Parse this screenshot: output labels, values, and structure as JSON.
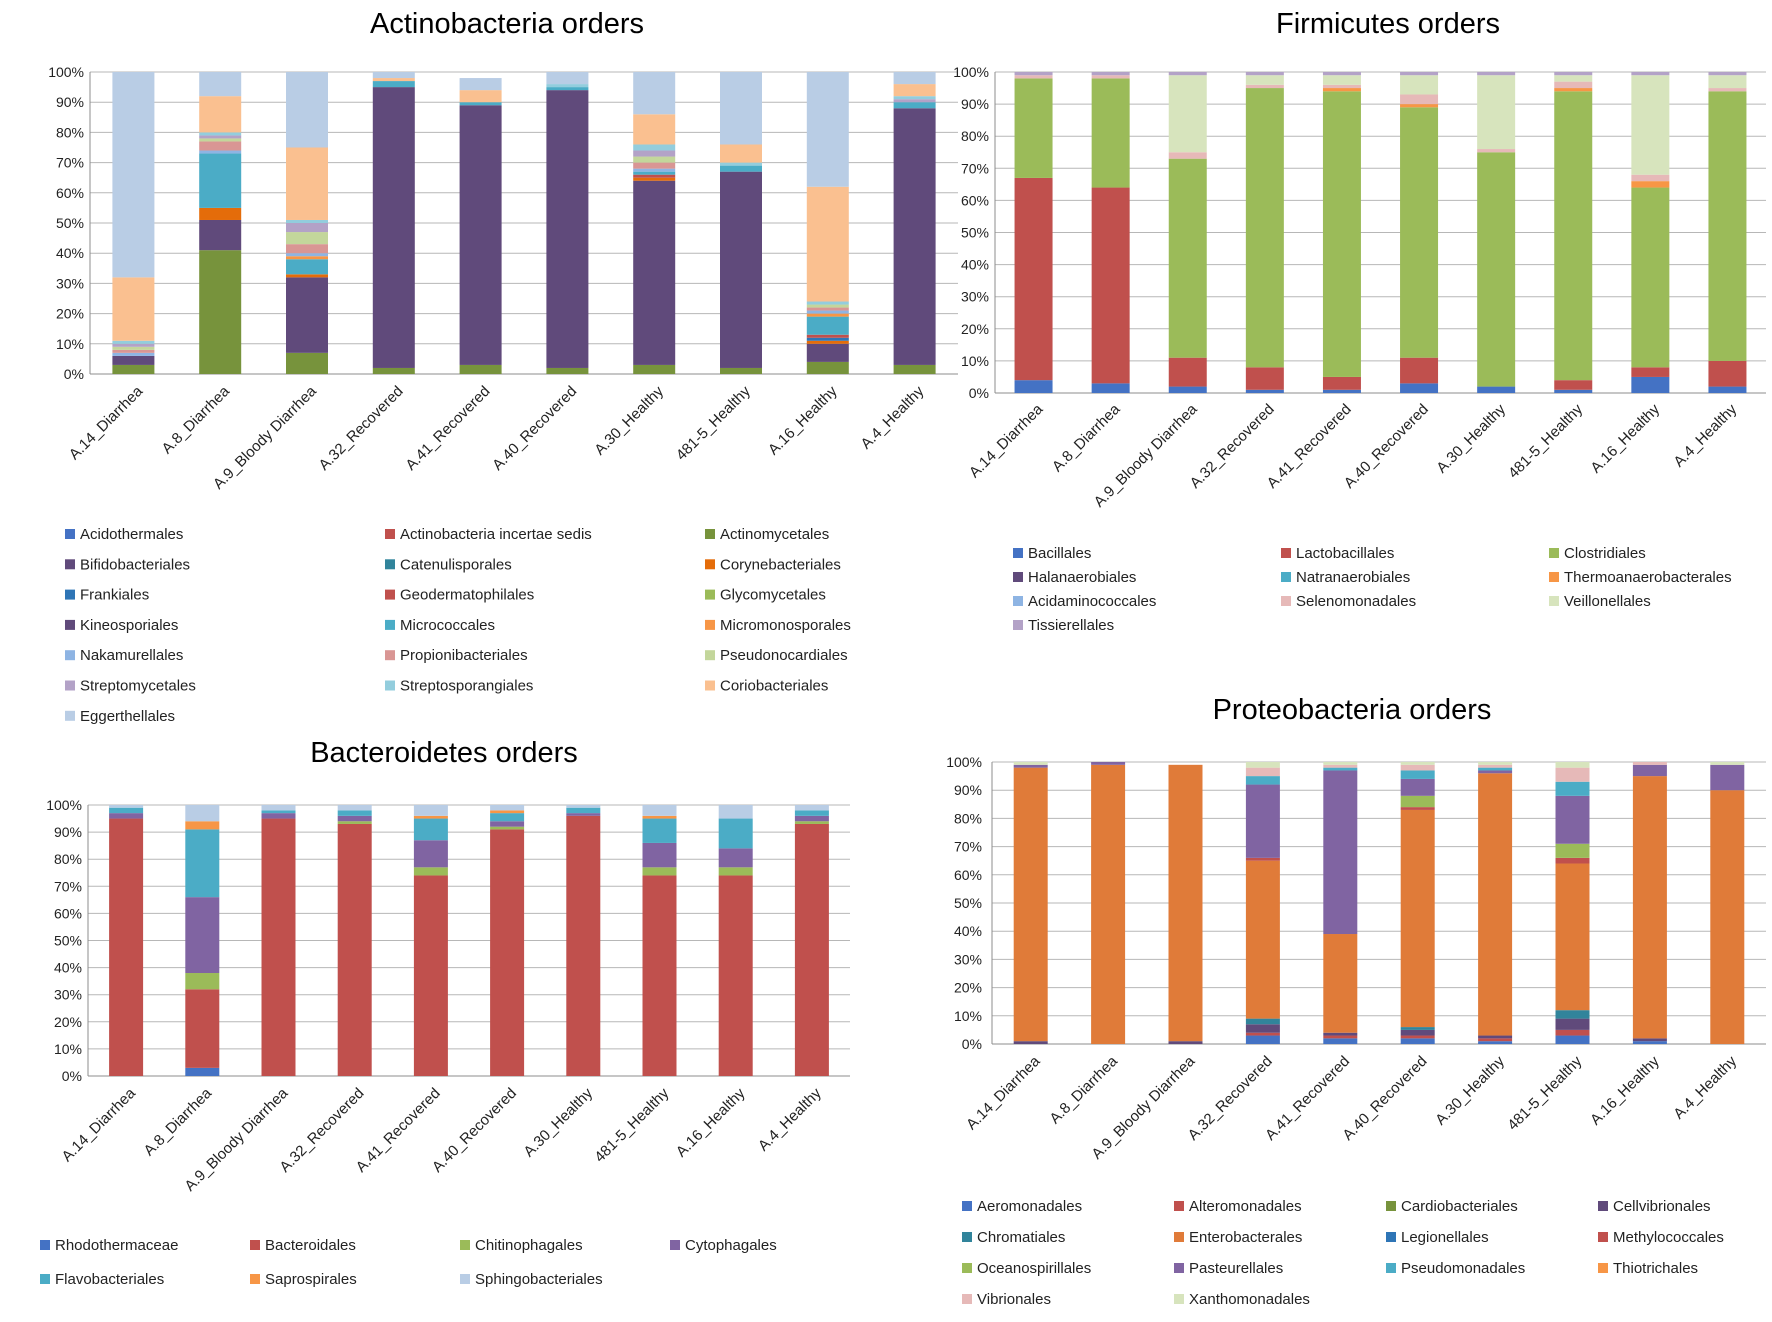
{
  "chart_data": [
    {
      "id": "actino",
      "type": "bar",
      "stacked": true,
      "title": "Actinobacteria orders",
      "categories": [
        "A.14_Diarrhea",
        "A.8_Diarrhea",
        "A.9_Bloody Diarrhea",
        "A.32_Recovered",
        "A.41_Recovered",
        "A.40_Recovered",
        "A.30_Healthy",
        "481-5_Healthy",
        "A.16_Healthy",
        "A.4_Healthy"
      ],
      "ylim": [
        0,
        100
      ],
      "yticks": [
        "0%",
        "10%",
        "20%",
        "30%",
        "40%",
        "50%",
        "60%",
        "70%",
        "80%",
        "90%",
        "100%"
      ],
      "grid": true,
      "legend_position": "bottom",
      "series": [
        {
          "name": "Acidothermales",
          "color": "#4472c4",
          "values": [
            0,
            0,
            0,
            0,
            0,
            0,
            0,
            0,
            0,
            0
          ]
        },
        {
          "name": "Actinobacteria incertae sedis",
          "color": "#c0504d",
          "values": [
            0,
            0,
            0,
            0,
            0,
            0,
            0,
            0,
            0,
            0
          ]
        },
        {
          "name": "Actinomycetales",
          "color": "#77933c",
          "values": [
            3,
            41,
            7,
            2,
            3,
            2,
            3,
            2,
            4,
            3
          ]
        },
        {
          "name": "Bifidobacteriales",
          "color": "#604a7b",
          "values": [
            3,
            10,
            25,
            93,
            86,
            92,
            61,
            65,
            6,
            85
          ]
        },
        {
          "name": "Catenulisporales",
          "color": "#31849b",
          "values": [
            0,
            0,
            0,
            0,
            0,
            0,
            0,
            0,
            0,
            0
          ]
        },
        {
          "name": "Corynebacteriales",
          "color": "#e46c0a",
          "values": [
            0,
            4,
            1,
            0,
            0,
            0,
            1,
            0,
            1,
            0
          ]
        },
        {
          "name": "Frankiales",
          "color": "#2e75b6",
          "values": [
            0,
            0,
            0,
            0,
            0,
            0,
            0,
            0,
            1,
            0
          ]
        },
        {
          "name": "Geodermatophilales",
          "color": "#c0504d",
          "values": [
            0,
            0,
            0,
            0,
            0,
            0,
            1,
            0,
            1,
            0
          ]
        },
        {
          "name": "Glycomycetales",
          "color": "#9bbb59",
          "values": [
            0,
            0,
            0,
            0,
            0,
            0,
            0,
            0,
            0,
            0
          ]
        },
        {
          "name": "Kineosporiales",
          "color": "#604a7b",
          "values": [
            0,
            0,
            0,
            0,
            0,
            0,
            0,
            0,
            0,
            0
          ]
        },
        {
          "name": "Micrococcales",
          "color": "#4bacc6",
          "values": [
            0,
            18,
            5,
            2,
            1,
            1,
            1,
            2,
            6,
            2
          ]
        },
        {
          "name": "Micromonosporales",
          "color": "#f79646",
          "values": [
            0,
            0,
            1,
            0,
            0,
            0,
            0,
            0,
            1,
            0
          ]
        },
        {
          "name": "Nakamurellales",
          "color": "#8eb4e3",
          "values": [
            1,
            1,
            1,
            0,
            0,
            0,
            1,
            0,
            1,
            0
          ]
        },
        {
          "name": "Propionibacteriales",
          "color": "#d99694",
          "values": [
            1,
            3,
            3,
            0,
            0,
            0,
            2,
            0,
            1,
            0
          ]
        },
        {
          "name": "Pseudonocardiales",
          "color": "#c3d69b",
          "values": [
            1,
            1,
            4,
            0,
            0,
            0,
            2,
            0,
            1,
            0
          ]
        },
        {
          "name": "Streptomycetales",
          "color": "#b3a2c7",
          "values": [
            1,
            1,
            3,
            0,
            0,
            0,
            2,
            0,
            0,
            1
          ]
        },
        {
          "name": "Streptosporangiales",
          "color": "#93cddd",
          "values": [
            1,
            1,
            1,
            0,
            0,
            1,
            2,
            1,
            1,
            1
          ]
        },
        {
          "name": "Coriobacteriales",
          "color": "#fac090",
          "values": [
            21,
            12,
            24,
            1,
            4,
            0,
            10,
            6,
            38,
            4
          ]
        },
        {
          "name": "Eggerthellales",
          "color": "#b9cde5",
          "values": [
            68,
            8,
            26,
            2,
            4,
            4,
            15,
            24,
            38,
            4
          ]
        }
      ]
    },
    {
      "id": "firmi",
      "type": "bar",
      "stacked": true,
      "title": "Firmicutes orders",
      "categories": [
        "A.14_Diarrhea",
        "A.8_Diarrhea",
        "A.9_Bloody Diarrhea",
        "A.32_Recovered",
        "A.41_Recovered",
        "A.40_Recovered",
        "A.30_Healthy",
        "481-5_Healthy",
        "A.16_Healthy",
        "A.4_Healthy"
      ],
      "ylim": [
        0,
        100
      ],
      "yticks": [
        "0%",
        "10%",
        "20%",
        "30%",
        "40%",
        "50%",
        "60%",
        "70%",
        "80%",
        "90%",
        "100%"
      ],
      "grid": true,
      "legend_position": "bottom",
      "series": [
        {
          "name": "Bacillales",
          "color": "#4472c4",
          "values": [
            4,
            3,
            2,
            1,
            1,
            3,
            2,
            1,
            5,
            2
          ]
        },
        {
          "name": "Lactobacillales",
          "color": "#c0504d",
          "values": [
            63,
            61,
            9,
            7,
            4,
            8,
            0,
            3,
            3,
            8
          ]
        },
        {
          "name": "Clostridiales",
          "color": "#9bbb59",
          "values": [
            31,
            34,
            62,
            87,
            89,
            78,
            73,
            90,
            56,
            84
          ]
        },
        {
          "name": "Halanaerobiales",
          "color": "#604a7b",
          "values": [
            0,
            0,
            0,
            0,
            0,
            0,
            0,
            0,
            0,
            0
          ]
        },
        {
          "name": "Natranaerobiales",
          "color": "#4bacc6",
          "values": [
            0,
            0,
            0,
            0,
            0,
            0,
            0,
            0,
            0,
            0
          ]
        },
        {
          "name": "Thermoanaerobacterales",
          "color": "#f79646",
          "values": [
            0,
            0,
            0,
            0,
            1,
            1,
            0,
            1,
            2,
            0
          ]
        },
        {
          "name": "Acidaminococcales",
          "color": "#8eb4e3",
          "values": [
            0,
            0,
            0,
            0,
            0,
            0,
            0,
            0,
            0,
            0
          ]
        },
        {
          "name": "Selenomonadales",
          "color": "#e6b9b8",
          "values": [
            1,
            1,
            2,
            1,
            1,
            3,
            1,
            2,
            2,
            1
          ]
        },
        {
          "name": "Veillonellales",
          "color": "#d7e4bd",
          "values": [
            0,
            0,
            24,
            3,
            3,
            6,
            23,
            2,
            31,
            4
          ]
        },
        {
          "name": "Tissierellales",
          "color": "#b3a2c7",
          "values": [
            1,
            1,
            1,
            1,
            1,
            1,
            1,
            1,
            1,
            1
          ]
        }
      ]
    },
    {
      "id": "bactero",
      "type": "bar",
      "stacked": true,
      "title": "Bacteroidetes orders",
      "categories": [
        "A.14_Diarrhea",
        "A.8_Diarrhea",
        "A.9_Bloody Diarrhea",
        "A.32_Recovered",
        "A.41_Recovered",
        "A.40_Recovered",
        "A.30_Healthy",
        "481-5_Healthy",
        "A.16_Healthy",
        "A.4_Healthy"
      ],
      "ylim": [
        0,
        100
      ],
      "yticks": [
        "0%",
        "10%",
        "20%",
        "30%",
        "40%",
        "50%",
        "60%",
        "70%",
        "80%",
        "90%",
        "100%"
      ],
      "grid": true,
      "legend_position": "bottom",
      "series": [
        {
          "name": "Rhodothermaceae",
          "color": "#4472c4",
          "values": [
            0,
            3,
            0,
            0,
            0,
            0,
            0,
            0,
            0,
            0
          ]
        },
        {
          "name": "Bacteroidales",
          "color": "#c0504d",
          "values": [
            95,
            29,
            95,
            93,
            74,
            91,
            96,
            74,
            74,
            93
          ]
        },
        {
          "name": "Chitinophagales",
          "color": "#9bbb59",
          "values": [
            0,
            6,
            0,
            1,
            3,
            1,
            0,
            3,
            3,
            1
          ]
        },
        {
          "name": "Cytophagales",
          "color": "#8064a2",
          "values": [
            2,
            28,
            2,
            2,
            10,
            2,
            1,
            9,
            7,
            2
          ]
        },
        {
          "name": "Flavobacteriales",
          "color": "#4bacc6",
          "values": [
            2,
            25,
            1,
            2,
            8,
            3,
            2,
            9,
            11,
            2
          ]
        },
        {
          "name": "Saprospirales",
          "color": "#f79646",
          "values": [
            0,
            3,
            0,
            0,
            1,
            1,
            0,
            1,
            0,
            0
          ]
        },
        {
          "name": "Sphingobacteriales",
          "color": "#b9cde5",
          "values": [
            1,
            6,
            2,
            2,
            4,
            2,
            1,
            4,
            5,
            2
          ]
        }
      ]
    },
    {
      "id": "proteo",
      "type": "bar",
      "stacked": true,
      "title": "Proteobacteria orders",
      "categories": [
        "A.14_Diarrhea",
        "A.8_Diarrhea",
        "A.9_Bloody Diarrhea",
        "A.32_Recovered",
        "A.41_Recovered",
        "A.40_Recovered",
        "A.30_Healthy",
        "481-5_Healthy",
        "A.16_Healthy",
        "A.4_Healthy"
      ],
      "ylim": [
        0,
        100
      ],
      "yticks": [
        "0%",
        "10%",
        "20%",
        "30%",
        "40%",
        "50%",
        "60%",
        "70%",
        "80%",
        "90%",
        "100%"
      ],
      "grid": true,
      "legend_position": "bottom",
      "series": [
        {
          "name": "Aeromonadales",
          "color": "#4472c4",
          "values": [
            0,
            0,
            0,
            3,
            2,
            2,
            1,
            3,
            1,
            0
          ]
        },
        {
          "name": "Alteromonadales",
          "color": "#c0504d",
          "values": [
            0,
            0,
            0,
            1,
            1,
            1,
            1,
            2,
            0,
            0
          ]
        },
        {
          "name": "Cardiobacteriales",
          "color": "#77933c",
          "values": [
            0,
            0,
            0,
            0,
            0,
            0,
            0,
            0,
            0,
            0
          ]
        },
        {
          "name": "Cellvibrionales",
          "color": "#604a7b",
          "values": [
            1,
            0,
            1,
            3,
            1,
            2,
            1,
            4,
            1,
            0
          ]
        },
        {
          "name": "Chromatiales",
          "color": "#31849b",
          "values": [
            0,
            0,
            0,
            2,
            0,
            1,
            0,
            3,
            0,
            0
          ]
        },
        {
          "name": "Enterobacterales",
          "color": "#e07b39",
          "values": [
            97,
            99,
            98,
            56,
            35,
            77,
            93,
            52,
            93,
            90
          ]
        },
        {
          "name": "Legionellales",
          "color": "#2e75b6",
          "values": [
            0,
            0,
            0,
            0,
            0,
            0,
            0,
            0,
            0,
            0
          ]
        },
        {
          "name": "Methylococcales",
          "color": "#c0504d",
          "values": [
            0,
            0,
            0,
            1,
            0,
            1,
            0,
            2,
            0,
            0
          ]
        },
        {
          "name": "Oceanospirillales",
          "color": "#9bbb59",
          "values": [
            0,
            0,
            0,
            0,
            0,
            4,
            0,
            5,
            0,
            0
          ]
        },
        {
          "name": "Pasteurellales",
          "color": "#8064a2",
          "values": [
            1,
            1,
            0,
            26,
            58,
            6,
            1,
            17,
            4,
            9
          ]
        },
        {
          "name": "Pseudomonadales",
          "color": "#4bacc6",
          "values": [
            0,
            0,
            0,
            3,
            1,
            3,
            1,
            5,
            0,
            0
          ]
        },
        {
          "name": "Thiotrichales",
          "color": "#f79646",
          "values": [
            0,
            0,
            0,
            0,
            0,
            0,
            0,
            0,
            0,
            0
          ]
        },
        {
          "name": "Vibrionales",
          "color": "#e6b9b8",
          "values": [
            0,
            0,
            0,
            3,
            1,
            2,
            1,
            5,
            1,
            0
          ]
        },
        {
          "name": "Xanthomonadales",
          "color": "#d7e4bd",
          "values": [
            1,
            0,
            0,
            2,
            1,
            1,
            1,
            2,
            0,
            1
          ]
        }
      ]
    }
  ]
}
